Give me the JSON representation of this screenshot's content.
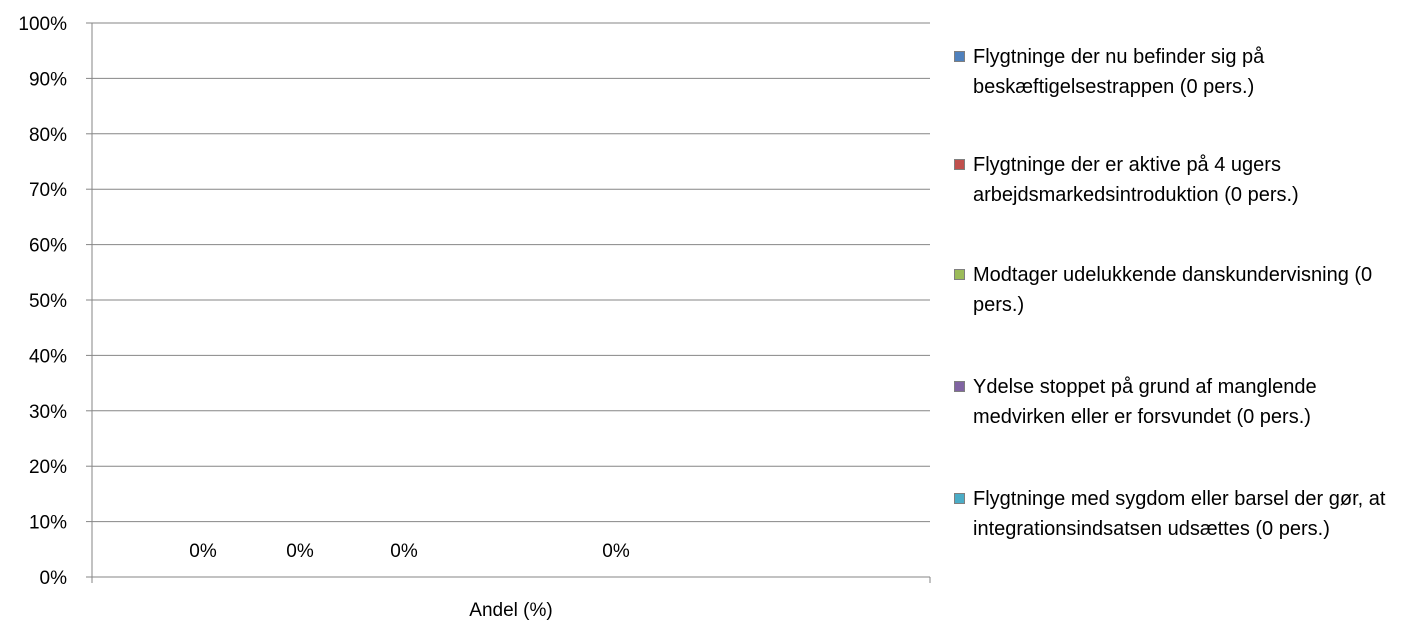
{
  "chart_data": {
    "type": "bar",
    "categories": [
      "Andel (%)"
    ],
    "xlabel": "Andel (%)",
    "ylabel": "",
    "ylim": [
      0,
      100
    ],
    "yticks": [
      "0%",
      "10%",
      "20%",
      "30%",
      "40%",
      "50%",
      "60%",
      "70%",
      "80%",
      "90%",
      "100%"
    ],
    "grid": true,
    "legend_position": "right",
    "series": [
      {
        "name": "Flygtninge der nu befinder sig på beskæftigelsestrappen (0 pers.)",
        "values": [
          0
        ],
        "label": "0%",
        "color": "#4f81bd"
      },
      {
        "name": "Flygtninge der er aktive på 4 ugers arbejdsmarkedsintroduktion (0 pers.)",
        "values": [
          0
        ],
        "label": "0%",
        "color": "#c0504d"
      },
      {
        "name": "Modtager udelukkende danskundervisning (0 pers.)",
        "values": [
          0
        ],
        "label": "0%",
        "color": "#9bbb59"
      },
      {
        "name": "Ydelse stoppet på grund af manglende medvirken eller er forsvundet (0 pers.)",
        "values": [
          0
        ],
        "label": "",
        "color": "#8064a2"
      },
      {
        "name": "Flygtninge med sygdom eller barsel der gør, at integrationsindsatsen udsættes (0 pers.)",
        "values": [
          0
        ],
        "label": "0%",
        "color": "#4bacc6"
      }
    ]
  }
}
